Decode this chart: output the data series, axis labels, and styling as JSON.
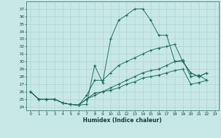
{
  "xlabel": "Humidex (Indice chaleur)",
  "bg_color": "#c8e8e8",
  "line_color": "#1a6b5a",
  "grid_color": "#a8cccc",
  "xlim": [
    -0.5,
    23.5
  ],
  "ylim": [
    23.5,
    38.0
  ],
  "xticks": [
    0,
    1,
    2,
    3,
    4,
    5,
    6,
    7,
    8,
    9,
    10,
    11,
    12,
    13,
    14,
    15,
    16,
    17,
    18,
    19,
    20,
    21,
    22,
    23
  ],
  "yticks": [
    24,
    25,
    26,
    27,
    28,
    29,
    30,
    31,
    32,
    33,
    34,
    35,
    36,
    37
  ],
  "series": [
    {
      "x": [
        0,
        1,
        2,
        3,
        4,
        5,
        6,
        7,
        8,
        9,
        10,
        11,
        12,
        13,
        14,
        15,
        16,
        17,
        18,
        19,
        20,
        21,
        22
      ],
      "y": [
        26.0,
        25.0,
        25.0,
        25.0,
        24.5,
        24.3,
        24.2,
        24.3,
        29.5,
        27.2,
        33.0,
        35.5,
        36.2,
        37.0,
        37.0,
        35.5,
        33.5,
        33.5,
        30.0,
        30.0,
        28.5,
        28.0,
        28.5
      ]
    },
    {
      "x": [
        0,
        1,
        2,
        3,
        4,
        5,
        6,
        7,
        8,
        9,
        10,
        11,
        12,
        13,
        14,
        15,
        16,
        17,
        18,
        19,
        20,
        21,
        22
      ],
      "y": [
        26.0,
        25.0,
        25.0,
        25.0,
        24.5,
        24.3,
        24.2,
        25.5,
        27.5,
        27.5,
        28.5,
        29.5,
        30.0,
        30.5,
        31.0,
        31.5,
        31.8,
        32.0,
        32.3,
        30.0,
        28.5,
        28.0,
        28.5
      ]
    },
    {
      "x": [
        0,
        1,
        2,
        3,
        4,
        5,
        6,
        7,
        8,
        9,
        10,
        11,
        12,
        13,
        14,
        15,
        16,
        17,
        18,
        19,
        20,
        21,
        22
      ],
      "y": [
        26.0,
        25.0,
        25.0,
        25.0,
        24.5,
        24.3,
        24.2,
        25.0,
        25.8,
        26.0,
        26.5,
        27.0,
        27.5,
        28.0,
        28.5,
        28.8,
        29.0,
        29.5,
        30.0,
        30.2,
        28.0,
        28.2,
        27.5
      ]
    },
    {
      "x": [
        0,
        1,
        2,
        3,
        4,
        5,
        6,
        7,
        8,
        9,
        10,
        11,
        12,
        13,
        14,
        15,
        16,
        17,
        18,
        19,
        20,
        21,
        22
      ],
      "y": [
        26.0,
        25.0,
        25.0,
        25.0,
        24.5,
        24.3,
        24.2,
        25.0,
        25.5,
        26.0,
        26.2,
        26.5,
        27.0,
        27.3,
        27.8,
        28.0,
        28.2,
        28.5,
        28.8,
        29.0,
        27.0,
        27.2,
        27.5
      ]
    }
  ]
}
